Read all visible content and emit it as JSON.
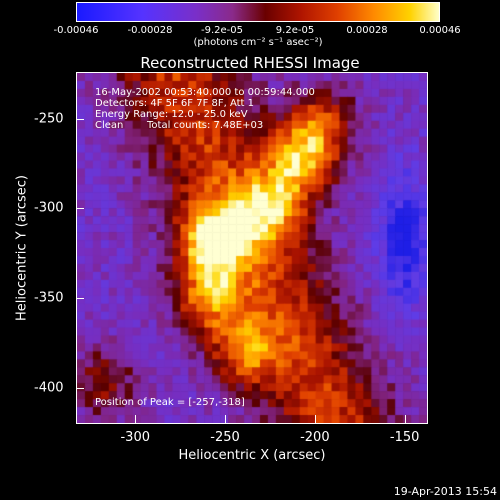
{
  "colorbar": {
    "ticks": [
      "-0.00046",
      "-0.00028",
      "-9.2e-05",
      "9.2e-05",
      "0.00028",
      "0.00046"
    ],
    "units": "(photons cm⁻² s⁻¹ asec⁻²)"
  },
  "chart_data": {
    "type": "heatmap",
    "title": "Reconstructed RHESSI Image",
    "xlabel": "Heliocentric X (arcsec)",
    "ylabel": "Heliocentric Y (arcsec)",
    "xlim": [
      -333,
      -137
    ],
    "ylim": [
      -420,
      -224
    ],
    "x_ticks": [
      -300,
      -250,
      -200,
      -150
    ],
    "y_ticks": [
      -250,
      -300,
      -350,
      -400
    ],
    "colorbar_range": [
      -0.00046,
      0.00046
    ],
    "colormap": "rainbow-like (blue-purple-red-orange-yellow-white)",
    "peak": [
      -257,
      -318
    ],
    "bright_sources": [
      {
        "x": -257,
        "y": -318,
        "level": 1.0
      },
      {
        "x": -207,
        "y": -272,
        "level": 0.95
      },
      {
        "x": -225,
        "y": -300,
        "level": 0.7
      },
      {
        "x": -260,
        "y": -350,
        "level": 0.7
      },
      {
        "x": -240,
        "y": -380,
        "level": 0.65
      },
      {
        "x": -195,
        "y": -250,
        "level": 0.6
      },
      {
        "x": -318,
        "y": -397,
        "level": 0.5
      }
    ],
    "annotations": {
      "time": "16-May-2002 00:53:40.000 to 00:59:44.000",
      "detectors": "Detectors: 4F 5F 6F 7F 8F, Att 1",
      "energy": "Energy Range: 12.0 - 25.0 keV",
      "clean": "Clean",
      "counts": "Total counts: 7.48E+03",
      "peak_label": "Position of Peak = [-257,-318]"
    }
  },
  "footer": {
    "date": "19-Apr-2013 15:54"
  }
}
